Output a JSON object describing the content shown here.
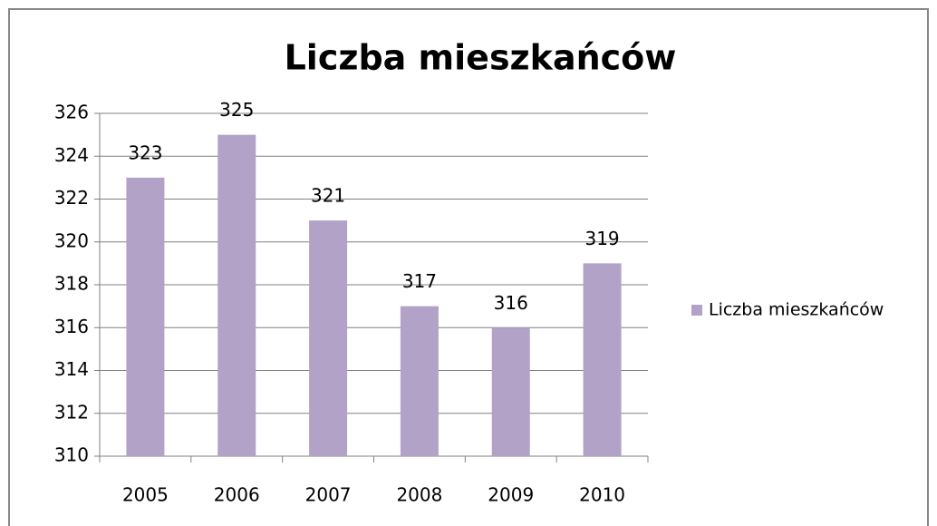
{
  "chart_data": {
    "type": "bar",
    "title": "Liczba mieszkańców",
    "categories": [
      "2005",
      "2006",
      "2007",
      "2008",
      "2009",
      "2010"
    ],
    "series": [
      {
        "name": "Liczba mieszkańców",
        "color": "#b3a2c7",
        "values": [
          323,
          325,
          321,
          317,
          316,
          319
        ]
      }
    ],
    "ylim": [
      310,
      326
    ],
    "yticks": [
      310,
      312,
      314,
      316,
      318,
      320,
      322,
      324,
      326
    ],
    "grid": true,
    "legend": "right",
    "data_labels": true
  }
}
